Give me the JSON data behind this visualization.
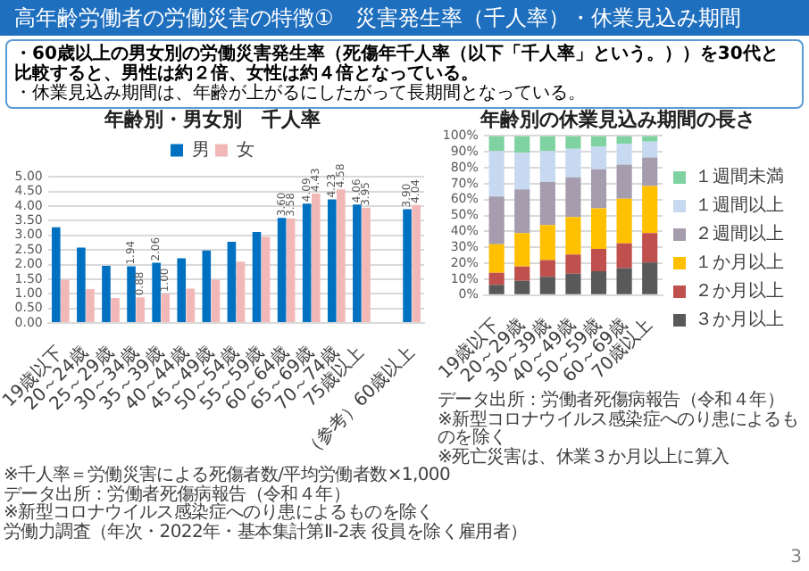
{
  "chart_data": [
    {
      "type": "bar",
      "title": "年齢別・男女別　千人率",
      "categories": [
        "19歳以下",
        "20～24歳",
        "25～29歳",
        "30～34歳",
        "35～39歳",
        "40～44歳",
        "45～49歳",
        "50～54歳",
        "55～59歳",
        "60～64歳",
        "65～69歳",
        "70～74歳",
        "75歳以上",
        null,
        "（参考）60歳以上"
      ],
      "series": [
        {
          "name": "男",
          "color": "#0070c0",
          "values": [
            3.28,
            2.58,
            1.96,
            1.94,
            2.06,
            2.22,
            2.48,
            2.78,
            3.12,
            3.6,
            4.09,
            4.23,
            4.06,
            null,
            3.9
          ],
          "value_labels": [
            null,
            null,
            null,
            "1.94",
            "2.06",
            null,
            null,
            null,
            null,
            "3.60",
            "4.09",
            "4.23",
            "4.06",
            null,
            "3.90"
          ]
        },
        {
          "name": "女",
          "color": "#f2b8b8",
          "values": [
            1.48,
            1.16,
            0.86,
            0.88,
            1.0,
            1.18,
            1.48,
            2.1,
            2.95,
            3.58,
            4.43,
            4.58,
            3.95,
            null,
            4.04
          ],
          "value_labels": [
            null,
            null,
            null,
            "0.88",
            "1.00",
            null,
            null,
            null,
            null,
            "3.58",
            "4.43",
            "4.58",
            "3.95",
            null,
            "4.04"
          ]
        }
      ],
      "ylim": [
        0,
        5
      ],
      "yticks": [
        {
          "value": 0,
          "label": "0.00"
        },
        {
          "value": 0.5,
          "label": "0.50"
        },
        {
          "value": 1,
          "label": "1.00"
        },
        {
          "value": 1.5,
          "label": "1.50"
        },
        {
          "value": 2,
          "label": "2.00"
        },
        {
          "value": 2.5,
          "label": "2.50"
        },
        {
          "value": 3,
          "label": "3.00"
        },
        {
          "value": 3.5,
          "label": "3.50"
        },
        {
          "value": 4,
          "label": "4.00"
        },
        {
          "value": 4.5,
          "label": "4.50"
        },
        {
          "value": 5,
          "label": "5.00"
        }
      ],
      "grid": "y",
      "legend": "top",
      "annotations": [
        "高年齢労働者の労働災害の特徴①　災害発生率（千人率）・休業見込み期間",
        "・60歳以上の男女別の労働災害発生率（死傷年千人率（以下「千人率」という。））を30代と比較すると、男性は約２倍、女性は約４倍となっている。",
        "・休業見込み期間は、年齢が上がるにしたがって長期間となっている。",
        "※千人率＝労働災害による死傷者数/平均労働者数×1,000",
        "データ出所：労働者死傷病報告（令和４年）",
        "※新型コロナウイルス感染症へのり患によるものを除く",
        "労働力調査（年次・2022年・基本集計第Ⅱ-2表 役員を除く雇用者）"
      ]
    },
    {
      "type": "bar",
      "title": "年齢別の休業見込み期間の長さ",
      "categories": [
        "19歳以下",
        "20～29歳",
        "30～39歳",
        "40～49歳",
        "50～59歳",
        "60～69歳",
        "70歳以上"
      ],
      "stacked": true,
      "series": [
        {
          "name": "３か月以上",
          "color": "#595959",
          "values": [
            6.5,
            9,
            11.5,
            13.5,
            15,
            17,
            20.5
          ]
        },
        {
          "name": "２か月以上",
          "color": "#c0504d",
          "values": [
            7.5,
            9,
            10.5,
            12,
            14,
            15.5,
            18.5
          ]
        },
        {
          "name": "１か月以上",
          "color": "#ffc000",
          "values": [
            18,
            21,
            22,
            23.5,
            25.5,
            28,
            29.5
          ]
        },
        {
          "name": "２週間以上",
          "color": "#a59cad",
          "values": [
            30,
            27.5,
            27,
            25,
            24.5,
            21.5,
            18
          ]
        },
        {
          "name": "１週間以上",
          "color": "#c6d9f0",
          "values": [
            28.5,
            23,
            19.5,
            18,
            14.5,
            13,
            10
          ]
        },
        {
          "name": "１週間未満",
          "color": "#7fd3a0",
          "values": [
            9.5,
            10.5,
            9.5,
            8,
            6.5,
            5,
            3.5
          ]
        }
      ],
      "ylim": [
        0,
        100
      ],
      "yticks": [
        {
          "value": 0,
          "label": "0%"
        },
        {
          "value": 10,
          "label": "10%"
        },
        {
          "value": 20,
          "label": "20%"
        },
        {
          "value": 30,
          "label": "30%"
        },
        {
          "value": 40,
          "label": "40%"
        },
        {
          "value": 50,
          "label": "50%"
        },
        {
          "value": 60,
          "label": "60%"
        },
        {
          "value": 70,
          "label": "70%"
        },
        {
          "value": 80,
          "label": "80%"
        },
        {
          "value": 90,
          "label": "90%"
        },
        {
          "value": 100,
          "label": "100%"
        }
      ],
      "grid": "y",
      "legend": "right",
      "annotations": [
        "データ出所：労働者死傷病報告（令和４年）",
        "※新型コロナウイルス感染症へのり患によるものを除く",
        "※死亡災害は、休業３か月以上に算入",
        "3"
      ]
    }
  ]
}
